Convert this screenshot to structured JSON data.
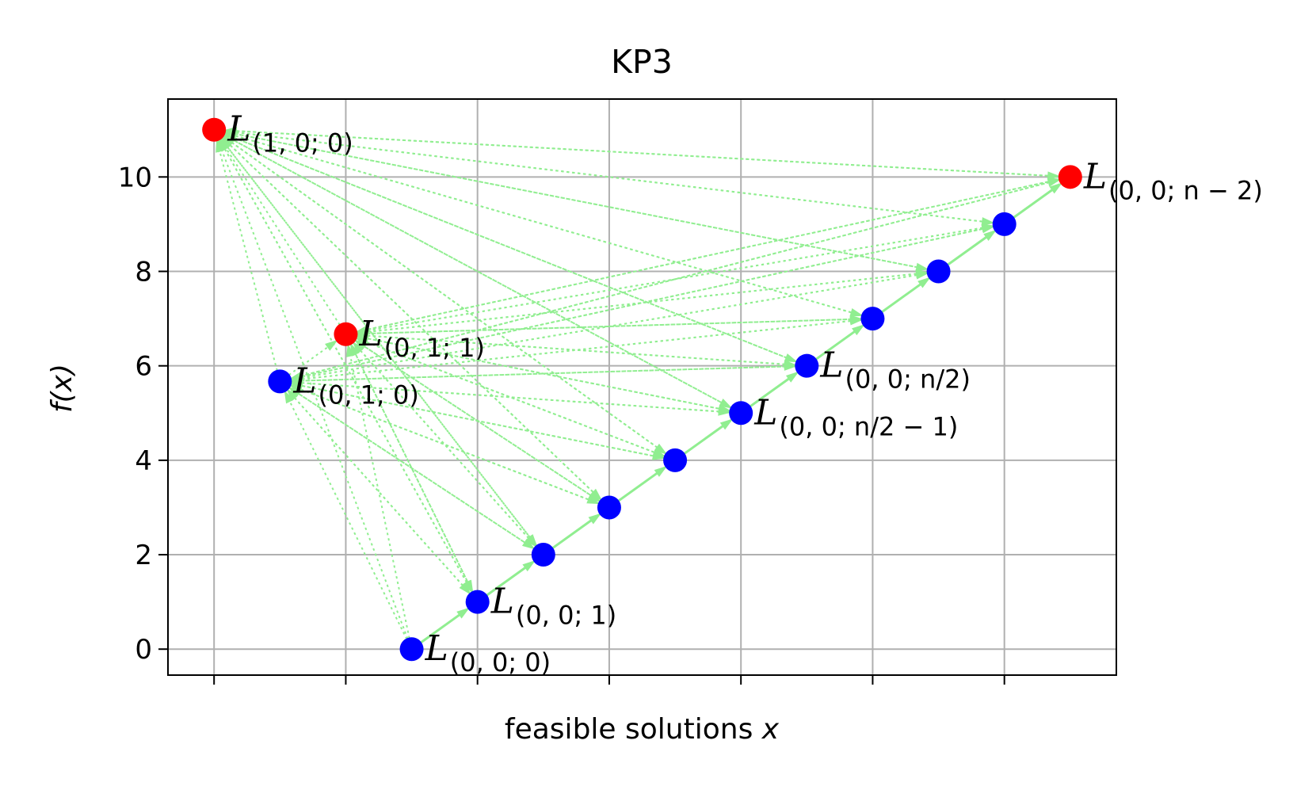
{
  "chart_data": {
    "type": "scatter",
    "title": "KP3",
    "xlabel_plain": "feasible solutions ",
    "xlabel_italic": "x",
    "ylabel_prefix": "f(",
    "ylabel_var": "x",
    "ylabel_suffix": ")",
    "ylim": [
      -0.55,
      11.65
    ],
    "xlim": [
      -0.35,
      6.85
    ],
    "yticks": [
      0,
      2,
      4,
      6,
      8,
      10
    ],
    "xticks": [
      0,
      1,
      2,
      3,
      4,
      5,
      6
    ],
    "grid": true,
    "colors": {
      "blue": "#0000ff",
      "red": "#ff0000",
      "edge": "#90ee90"
    },
    "points": [
      {
        "id": "p00",
        "x": 1.5,
        "y": 0,
        "color": "blue",
        "label_sub": "(0, 0; 0)"
      },
      {
        "id": "p01",
        "x": 2.0,
        "y": 1,
        "color": "blue",
        "label_sub": "(0, 0; 1)"
      },
      {
        "id": "p02",
        "x": 2.5,
        "y": 2,
        "color": "blue",
        "label_sub": ""
      },
      {
        "id": "p03",
        "x": 3.0,
        "y": 3,
        "color": "blue",
        "label_sub": ""
      },
      {
        "id": "p04",
        "x": 3.5,
        "y": 4,
        "color": "blue",
        "label_sub": ""
      },
      {
        "id": "p05",
        "x": 4.0,
        "y": 5,
        "color": "blue",
        "label_sub": "(0, 0; n/2 − 1)"
      },
      {
        "id": "p06",
        "x": 4.5,
        "y": 6,
        "color": "blue",
        "label_sub": "(0, 0; n/2)"
      },
      {
        "id": "p07",
        "x": 5.0,
        "y": 7,
        "color": "blue",
        "label_sub": ""
      },
      {
        "id": "p08",
        "x": 5.5,
        "y": 8,
        "color": "blue",
        "label_sub": ""
      },
      {
        "id": "p09",
        "x": 6.0,
        "y": 9,
        "color": "blue",
        "label_sub": ""
      },
      {
        "id": "p10",
        "x": 6.5,
        "y": 10,
        "color": "red",
        "label_sub": "(0, 0; n − 2)"
      },
      {
        "id": "p11",
        "x": 0.5,
        "y": 5.67,
        "color": "blue",
        "label_sub": "(0, 1; 0)"
      },
      {
        "id": "p12",
        "x": 1.0,
        "y": 6.67,
        "color": "red",
        "label_sub": "(0, 1; 1)"
      },
      {
        "id": "p13",
        "x": 0.0,
        "y": 11,
        "color": "red",
        "label_sub": "(1, 0; 0)"
      }
    ],
    "label_main": "L"
  }
}
